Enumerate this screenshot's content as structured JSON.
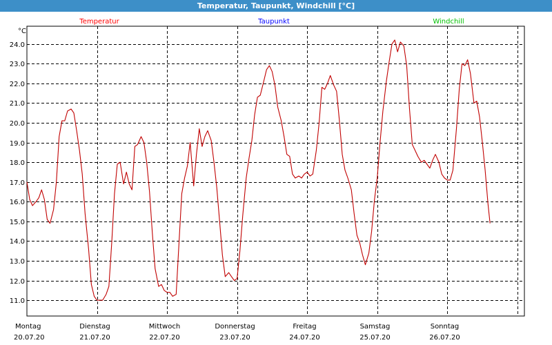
{
  "chart_data": {
    "type": "line",
    "title": "Temperatur, Taupunkt, Windchill [°C]",
    "ylabel": "°C",
    "ylim": [
      10.2,
      24.9
    ],
    "yticks": [
      11.0,
      12.0,
      13.0,
      14.0,
      15.0,
      16.0,
      17.0,
      18.0,
      19.0,
      20.0,
      21.0,
      22.0,
      23.0,
      24.0
    ],
    "grid": true,
    "xlim": [
      0,
      7.1
    ],
    "xticks": [
      {
        "x": 1,
        "day": "Dienstag",
        "date": "21.07.20"
      },
      {
        "x": 2,
        "day": "Mittwoch",
        "date": "22.07.20"
      },
      {
        "x": 3,
        "day": "Donnerstag",
        "date": "23.07.20"
      },
      {
        "x": 4,
        "day": "Freitag",
        "date": "24.07.20"
      },
      {
        "x": 5,
        "day": "Samstag",
        "date": "25.07.20"
      },
      {
        "x": 6,
        "day": "Sonntag",
        "date": "26.07.20"
      },
      {
        "x": 7,
        "day": "",
        "date": ""
      }
    ],
    "start_label": {
      "day": "Montag",
      "date": "20.07.20"
    },
    "legend": [
      {
        "name": "Temperatur",
        "color": "#ff0000"
      },
      {
        "name": "Taupunkt",
        "color": "#0000ff"
      },
      {
        "name": "Windchill",
        "color": "#00c000"
      }
    ],
    "series": [
      {
        "name": "Temperatur",
        "color": "#c00000",
        "points": [
          [
            0.0,
            17.0
          ],
          [
            0.04,
            16.1
          ],
          [
            0.08,
            15.8
          ],
          [
            0.13,
            16.0
          ],
          [
            0.17,
            16.2
          ],
          [
            0.21,
            16.6
          ],
          [
            0.25,
            16.1
          ],
          [
            0.29,
            15.1
          ],
          [
            0.33,
            14.9
          ],
          [
            0.38,
            15.6
          ],
          [
            0.42,
            17.0
          ],
          [
            0.46,
            19.3
          ],
          [
            0.5,
            20.1
          ],
          [
            0.54,
            20.1
          ],
          [
            0.58,
            20.6
          ],
          [
            0.63,
            20.7
          ],
          [
            0.67,
            20.5
          ],
          [
            0.71,
            19.6
          ],
          [
            0.75,
            18.6
          ],
          [
            0.79,
            17.4
          ],
          [
            0.83,
            15.4
          ],
          [
            0.88,
            13.6
          ],
          [
            0.92,
            11.8
          ],
          [
            0.96,
            11.2
          ],
          [
            1.0,
            11.0
          ],
          [
            1.04,
            11.0
          ],
          [
            1.08,
            11.0
          ],
          [
            1.13,
            11.3
          ],
          [
            1.17,
            11.7
          ],
          [
            1.21,
            13.9
          ],
          [
            1.25,
            16.4
          ],
          [
            1.29,
            17.9
          ],
          [
            1.33,
            18.0
          ],
          [
            1.38,
            16.9
          ],
          [
            1.42,
            17.5
          ],
          [
            1.46,
            16.9
          ],
          [
            1.5,
            16.6
          ],
          [
            1.54,
            18.8
          ],
          [
            1.58,
            18.9
          ],
          [
            1.63,
            19.3
          ],
          [
            1.67,
            19.0
          ],
          [
            1.71,
            18.0
          ],
          [
            1.75,
            16.5
          ],
          [
            1.79,
            14.4
          ],
          [
            1.83,
            12.6
          ],
          [
            1.88,
            11.7
          ],
          [
            1.92,
            11.8
          ],
          [
            1.96,
            11.5
          ],
          [
            2.0,
            11.4
          ],
          [
            2.04,
            11.4
          ],
          [
            2.08,
            11.2
          ],
          [
            2.13,
            11.3
          ],
          [
            2.17,
            13.9
          ],
          [
            2.21,
            16.4
          ],
          [
            2.25,
            17.2
          ],
          [
            2.29,
            17.8
          ],
          [
            2.33,
            19.0
          ],
          [
            2.38,
            16.8
          ],
          [
            2.42,
            18.4
          ],
          [
            2.46,
            19.7
          ],
          [
            2.5,
            18.8
          ],
          [
            2.54,
            19.3
          ],
          [
            2.58,
            19.6
          ],
          [
            2.63,
            19.1
          ],
          [
            2.67,
            18.0
          ],
          [
            2.71,
            16.7
          ],
          [
            2.75,
            15.0
          ],
          [
            2.79,
            13.3
          ],
          [
            2.83,
            12.2
          ],
          [
            2.88,
            12.4
          ],
          [
            2.92,
            12.2
          ],
          [
            2.96,
            12.0
          ],
          [
            3.0,
            12.1
          ],
          [
            3.04,
            13.5
          ],
          [
            3.08,
            15.3
          ],
          [
            3.13,
            17.2
          ],
          [
            3.17,
            18.2
          ],
          [
            3.21,
            19.1
          ],
          [
            3.25,
            20.4
          ],
          [
            3.29,
            21.3
          ],
          [
            3.33,
            21.4
          ],
          [
            3.38,
            22.1
          ],
          [
            3.42,
            22.7
          ],
          [
            3.46,
            22.9
          ],
          [
            3.5,
            22.6
          ],
          [
            3.54,
            21.9
          ],
          [
            3.58,
            20.8
          ],
          [
            3.63,
            20.1
          ],
          [
            3.67,
            19.3
          ],
          [
            3.71,
            18.4
          ],
          [
            3.75,
            18.3
          ],
          [
            3.79,
            17.4
          ],
          [
            3.83,
            17.2
          ],
          [
            3.88,
            17.3
          ],
          [
            3.92,
            17.2
          ],
          [
            3.96,
            17.4
          ],
          [
            4.0,
            17.5
          ],
          [
            4.04,
            17.3
          ],
          [
            4.08,
            17.4
          ],
          [
            4.13,
            18.6
          ],
          [
            4.17,
            20.0
          ],
          [
            4.21,
            21.8
          ],
          [
            4.25,
            21.7
          ],
          [
            4.29,
            22.0
          ],
          [
            4.33,
            22.4
          ],
          [
            4.38,
            21.9
          ],
          [
            4.42,
            21.6
          ],
          [
            4.46,
            20.1
          ],
          [
            4.5,
            18.4
          ],
          [
            4.54,
            17.6
          ],
          [
            4.58,
            17.2
          ],
          [
            4.63,
            16.6
          ],
          [
            4.67,
            15.4
          ],
          [
            4.71,
            14.3
          ],
          [
            4.75,
            13.9
          ],
          [
            4.79,
            13.3
          ],
          [
            4.83,
            12.8
          ],
          [
            4.88,
            13.4
          ],
          [
            4.92,
            14.5
          ],
          [
            4.96,
            16.1
          ],
          [
            5.0,
            17.2
          ],
          [
            5.04,
            19.0
          ],
          [
            5.08,
            20.6
          ],
          [
            5.13,
            22.1
          ],
          [
            5.17,
            23.1
          ],
          [
            5.21,
            24.0
          ],
          [
            5.25,
            24.2
          ],
          [
            5.29,
            23.6
          ],
          [
            5.33,
            24.1
          ],
          [
            5.38,
            23.9
          ],
          [
            5.42,
            22.9
          ],
          [
            5.46,
            20.7
          ],
          [
            5.5,
            18.9
          ],
          [
            5.54,
            18.6
          ],
          [
            5.58,
            18.3
          ],
          [
            5.63,
            18.0
          ],
          [
            5.67,
            18.1
          ],
          [
            5.71,
            17.9
          ],
          [
            5.75,
            17.7
          ],
          [
            5.79,
            18.1
          ],
          [
            5.83,
            18.4
          ],
          [
            5.88,
            18.0
          ],
          [
            5.92,
            17.4
          ],
          [
            5.96,
            17.2
          ],
          [
            6.0,
            17.1
          ],
          [
            6.04,
            17.1
          ],
          [
            6.08,
            17.6
          ],
          [
            6.13,
            19.7
          ],
          [
            6.17,
            21.7
          ],
          [
            6.21,
            23.0
          ],
          [
            6.25,
            22.9
          ],
          [
            6.29,
            23.2
          ],
          [
            6.33,
            22.5
          ],
          [
            6.38,
            21.0
          ],
          [
            6.42,
            21.1
          ],
          [
            6.46,
            20.3
          ],
          [
            6.5,
            19.0
          ],
          [
            6.54,
            17.6
          ],
          [
            6.58,
            15.9
          ],
          [
            6.61,
            14.9
          ]
        ]
      }
    ]
  }
}
